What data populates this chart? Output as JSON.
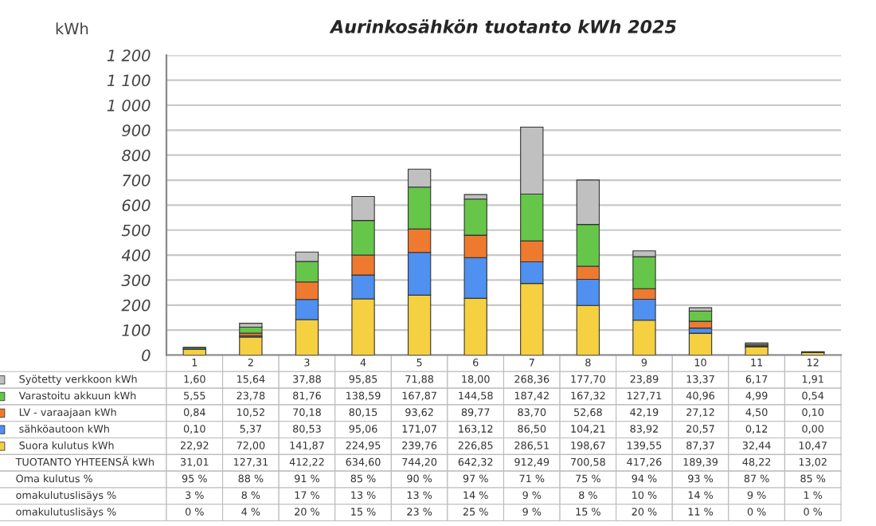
{
  "chart_data": {
    "type": "bar",
    "stacked": true,
    "title": "Aurinkosähkön tuotanto kWh 2025",
    "ylabel": "kWh",
    "categories": [
      "1",
      "2",
      "3",
      "4",
      "5",
      "6",
      "7",
      "8",
      "9",
      "10",
      "11",
      "12"
    ],
    "ylim": [
      0,
      1200
    ],
    "yticks": [
      0,
      100,
      200,
      300,
      400,
      500,
      600,
      700,
      800,
      900,
      {
        "value": 1000,
        "label": "1 000"
      },
      {
        "value": 1100,
        "label": "1 100"
      },
      {
        "value": 1200,
        "label": "1 200"
      }
    ],
    "grid": "y",
    "legend": "bottom",
    "series": [
      {
        "name": "Suora kulutus kWh",
        "color": "#f5d040",
        "values": [
          22.92,
          72.0,
          141.87,
          224.95,
          239.76,
          226.85,
          286.51,
          198.67,
          139.55,
          87.37,
          32.44,
          10.47
        ],
        "value_labels": [
          "22,92",
          "72,00",
          "141,87",
          "224,95",
          "239,76",
          "226,85",
          "286,51",
          "198,67",
          "139,55",
          "87,37",
          "32,44",
          "10,47"
        ]
      },
      {
        "name": "sähköautoon kWh",
        "color": "#4f90f0",
        "values": [
          0.1,
          5.37,
          80.53,
          95.06,
          171.07,
          163.12,
          86.5,
          104.21,
          83.92,
          20.57,
          0.12,
          0.0
        ],
        "value_labels": [
          "0,10",
          "5,37",
          "80,53",
          "95,06",
          "171,07",
          "163,12",
          "86,50",
          "104,21",
          "83,92",
          "20,57",
          "0,12",
          "0,00"
        ]
      },
      {
        "name": "LV - varaajaan kWh",
        "color": "#ee7a30",
        "values": [
          0.84,
          10.52,
          70.18,
          80.15,
          93.62,
          89.77,
          83.7,
          52.68,
          42.19,
          27.12,
          4.5,
          0.1
        ],
        "value_labels": [
          "0,84",
          "10,52",
          "70,18",
          "80,15",
          "93,62",
          "89,77",
          "83,70",
          "52,68",
          "42,19",
          "27,12",
          "4,50",
          "0,10"
        ]
      },
      {
        "name": "Varastoitu akkuun kWh",
        "color": "#66c64a",
        "values": [
          5.55,
          23.78,
          81.76,
          138.59,
          167.87,
          144.58,
          187.42,
          167.32,
          127.71,
          40.96,
          4.99,
          0.54
        ],
        "value_labels": [
          "5,55",
          "23,78",
          "81,76",
          "138,59",
          "167,87",
          "144,58",
          "187,42",
          "167,32",
          "127,71",
          "40,96",
          "4,99",
          "0,54"
        ]
      },
      {
        "name": "Syötetty verkkoon kWh",
        "color": "#c0c0c0",
        "values": [
          1.6,
          15.64,
          37.88,
          95.85,
          71.88,
          18.0,
          268.36,
          177.7,
          23.89,
          13.37,
          6.17,
          1.91
        ],
        "value_labels": [
          "1,60",
          "15,64",
          "37,88",
          "95,85",
          "71,88",
          "18,00",
          "268,36",
          "177,70",
          "23,89",
          "13,37",
          "6,17",
          "1,91"
        ]
      }
    ],
    "annotations": [
      "TUOTANTO YHTEENSÄ kWh",
      "31,01",
      "127,31",
      "412,22",
      "634,60",
      "744,20",
      "642,32",
      "912,49",
      "700,58",
      "417,26",
      "189,39",
      "48,22",
      "13,02",
      "Oma kulutus %",
      "95 %",
      "88 %",
      "91 %",
      "85 %",
      "90 %",
      "97 %",
      "71 %",
      "75 %",
      "94 %",
      "93 %",
      "87 %",
      "85 %",
      "omakulutuslisäys %",
      "3 %",
      "8 %",
      "17 %",
      "13 %",
      "13 %",
      "14 %",
      "9 %",
      "8 %",
      "10 %",
      "14 %",
      "9 %",
      "1 %",
      "omakulutuslisäys %",
      "0 %",
      "4 %",
      "20 %",
      "15 %",
      "23 %",
      "25 %",
      "9 %",
      "15 %",
      "20 %",
      "11 %",
      "0 %",
      "0 %"
    ]
  }
}
